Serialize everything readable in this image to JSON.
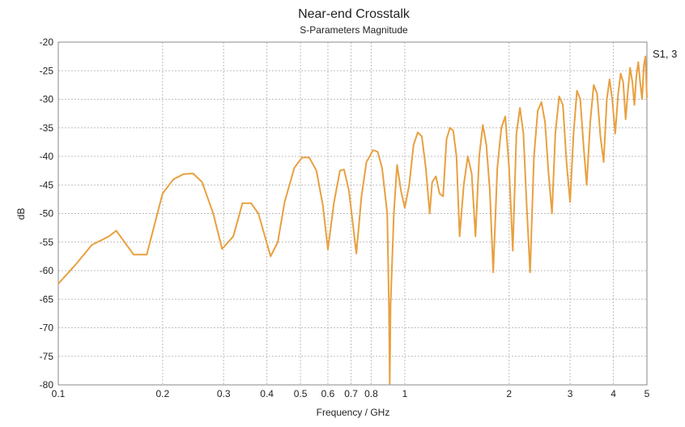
{
  "chart_data": {
    "type": "line",
    "title": "Near-end Crosstalk",
    "subtitle": "S-Parameters Magnitude",
    "xlabel": "Frequency / GHz",
    "ylabel": "dB",
    "xscale": "log",
    "xlim": [
      0.1,
      5
    ],
    "ylim": [
      -80,
      -20
    ],
    "grid": true,
    "legend_position": "right",
    "color": "#E8A040",
    "xticks": [
      {
        "value": 0.1,
        "label": "0.1"
      },
      {
        "value": 0.2,
        "label": "0.2"
      },
      {
        "value": 0.3,
        "label": "0.3"
      },
      {
        "value": 0.4,
        "label": "0.4"
      },
      {
        "value": 0.5,
        "label": "0.5"
      },
      {
        "value": 0.6,
        "label": "0.6"
      },
      {
        "value": 0.7,
        "label": "0.7"
      },
      {
        "value": 0.8,
        "label": "0.8"
      },
      {
        "value": 1,
        "label": "1"
      },
      {
        "value": 2,
        "label": "2"
      },
      {
        "value": 3,
        "label": "3"
      },
      {
        "value": 4,
        "label": "4"
      },
      {
        "value": 5,
        "label": "5"
      }
    ],
    "yticks": [
      {
        "value": -20,
        "label": "-20"
      },
      {
        "value": -25,
        "label": "-25"
      },
      {
        "value": -30,
        "label": "-30"
      },
      {
        "value": -35,
        "label": "-35"
      },
      {
        "value": -40,
        "label": "-40"
      },
      {
        "value": -45,
        "label": "-45"
      },
      {
        "value": -50,
        "label": "-50"
      },
      {
        "value": -55,
        "label": "-55"
      },
      {
        "value": -60,
        "label": "-60"
      },
      {
        "value": -65,
        "label": "-65"
      },
      {
        "value": -70,
        "label": "-70"
      },
      {
        "value": -75,
        "label": "-75"
      },
      {
        "value": -80,
        "label": "-80"
      }
    ],
    "series": [
      {
        "name": "S1, 3",
        "points": [
          [
            0.1,
            -62.3
          ],
          [
            0.112,
            -59.0
          ],
          [
            0.125,
            -55.5
          ],
          [
            0.14,
            -54.0
          ],
          [
            0.147,
            -53.0
          ],
          [
            0.165,
            -57.2
          ],
          [
            0.18,
            -57.2
          ],
          [
            0.2,
            -46.5
          ],
          [
            0.215,
            -44.0
          ],
          [
            0.23,
            -43.1
          ],
          [
            0.245,
            -43.0
          ],
          [
            0.26,
            -44.5
          ],
          [
            0.28,
            -50.0
          ],
          [
            0.297,
            -56.2
          ],
          [
            0.32,
            -54.0
          ],
          [
            0.34,
            -48.2
          ],
          [
            0.36,
            -48.2
          ],
          [
            0.378,
            -50.0
          ],
          [
            0.41,
            -57.5
          ],
          [
            0.43,
            -55.0
          ],
          [
            0.45,
            -48.0
          ],
          [
            0.48,
            -42.0
          ],
          [
            0.505,
            -40.2
          ],
          [
            0.53,
            -40.2
          ],
          [
            0.556,
            -42.5
          ],
          [
            0.58,
            -48.5
          ],
          [
            0.6,
            -56.3
          ],
          [
            0.625,
            -48.0
          ],
          [
            0.65,
            -42.5
          ],
          [
            0.668,
            -42.3
          ],
          [
            0.69,
            -46.0
          ],
          [
            0.725,
            -57.0
          ],
          [
            0.75,
            -47.0
          ],
          [
            0.775,
            -41.0
          ],
          [
            0.81,
            -38.9
          ],
          [
            0.835,
            -39.2
          ],
          [
            0.86,
            -42.0
          ],
          [
            0.89,
            -50.0
          ],
          [
            0.9,
            -66.0
          ],
          [
            0.905,
            -79.8
          ],
          [
            0.91,
            -66.0
          ],
          [
            0.93,
            -50.0
          ],
          [
            0.95,
            -41.5
          ],
          [
            0.975,
            -46.0
          ],
          [
            1.0,
            -49.0
          ],
          [
            1.03,
            -45.0
          ],
          [
            1.06,
            -38.0
          ],
          [
            1.09,
            -35.8
          ],
          [
            1.12,
            -36.5
          ],
          [
            1.15,
            -42.0
          ],
          [
            1.18,
            -50.0
          ],
          [
            1.2,
            -44.5
          ],
          [
            1.23,
            -43.5
          ],
          [
            1.26,
            -46.5
          ],
          [
            1.29,
            -47.0
          ],
          [
            1.32,
            -37.0
          ],
          [
            1.35,
            -35.0
          ],
          [
            1.38,
            -35.5
          ],
          [
            1.41,
            -40.0
          ],
          [
            1.44,
            -54.0
          ],
          [
            1.48,
            -45.0
          ],
          [
            1.52,
            -40.0
          ],
          [
            1.56,
            -43.0
          ],
          [
            1.6,
            -54.0
          ],
          [
            1.64,
            -40.0
          ],
          [
            1.68,
            -34.5
          ],
          [
            1.72,
            -38.0
          ],
          [
            1.76,
            -46.0
          ],
          [
            1.8,
            -60.3
          ],
          [
            1.85,
            -42.0
          ],
          [
            1.9,
            -35.0
          ],
          [
            1.95,
            -33.0
          ],
          [
            2.0,
            -42.0
          ],
          [
            2.05,
            -56.5
          ],
          [
            2.1,
            -36.0
          ],
          [
            2.15,
            -31.5
          ],
          [
            2.2,
            -36.0
          ],
          [
            2.25,
            -49.0
          ],
          [
            2.3,
            -60.3
          ],
          [
            2.36,
            -40.0
          ],
          [
            2.42,
            -32.0
          ],
          [
            2.48,
            -30.5
          ],
          [
            2.54,
            -34.0
          ],
          [
            2.6,
            -43.0
          ],
          [
            2.66,
            -50.0
          ],
          [
            2.72,
            -36.0
          ],
          [
            2.79,
            -29.5
          ],
          [
            2.86,
            -31.0
          ],
          [
            2.93,
            -41.0
          ],
          [
            3.0,
            -48.0
          ],
          [
            3.07,
            -36.0
          ],
          [
            3.14,
            -28.5
          ],
          [
            3.21,
            -30.0
          ],
          [
            3.28,
            -38.0
          ],
          [
            3.35,
            -45.0
          ],
          [
            3.43,
            -34.0
          ],
          [
            3.51,
            -27.5
          ],
          [
            3.59,
            -29.0
          ],
          [
            3.67,
            -36.5
          ],
          [
            3.75,
            -41.0
          ],
          [
            3.83,
            -30.0
          ],
          [
            3.9,
            -26.5
          ],
          [
            3.97,
            -30.0
          ],
          [
            4.05,
            -36.0
          ],
          [
            4.13,
            -29.0
          ],
          [
            4.2,
            -25.5
          ],
          [
            4.27,
            -27.0
          ],
          [
            4.34,
            -33.5
          ],
          [
            4.4,
            -29.0
          ],
          [
            4.47,
            -24.5
          ],
          [
            4.54,
            -27.0
          ],
          [
            4.6,
            -31.0
          ],
          [
            4.66,
            -26.0
          ],
          [
            4.72,
            -23.5
          ],
          [
            4.78,
            -27.0
          ],
          [
            4.84,
            -30.0
          ],
          [
            4.9,
            -24.0
          ],
          [
            4.95,
            -22.5
          ],
          [
            5.0,
            -29.8
          ]
        ]
      }
    ]
  }
}
